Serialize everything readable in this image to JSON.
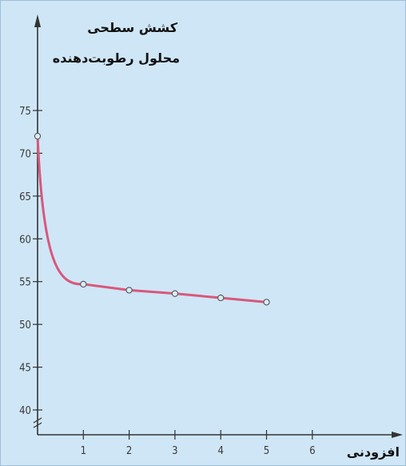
{
  "chart_data": {
    "type": "line",
    "title_lines": [
      "کشش سطحی",
      "محلول رطوبت‌دهنده"
    ],
    "xlabel": "افزودنی",
    "ylabel": "",
    "xlim": [
      0,
      6.5
    ],
    "ylim": [
      38.5,
      78.5
    ],
    "x_ticks": [
      "1",
      "2",
      "3",
      "4",
      "5",
      "6"
    ],
    "y_ticks": [
      "40",
      "45",
      "50",
      "55",
      "60",
      "65",
      "70",
      "75"
    ],
    "series": [
      {
        "color": "#d8587a",
        "points": [
          {
            "x": 0,
            "y": 72.0
          },
          {
            "x": 1,
            "y": 54.7
          },
          {
            "x": 2,
            "y": 54.0
          },
          {
            "x": 3,
            "y": 53.6
          },
          {
            "x": 4,
            "y": 53.1
          },
          {
            "x": 5,
            "y": 52.6
          }
        ]
      }
    ],
    "axis_break": true,
    "grid": false,
    "legend": "none"
  }
}
